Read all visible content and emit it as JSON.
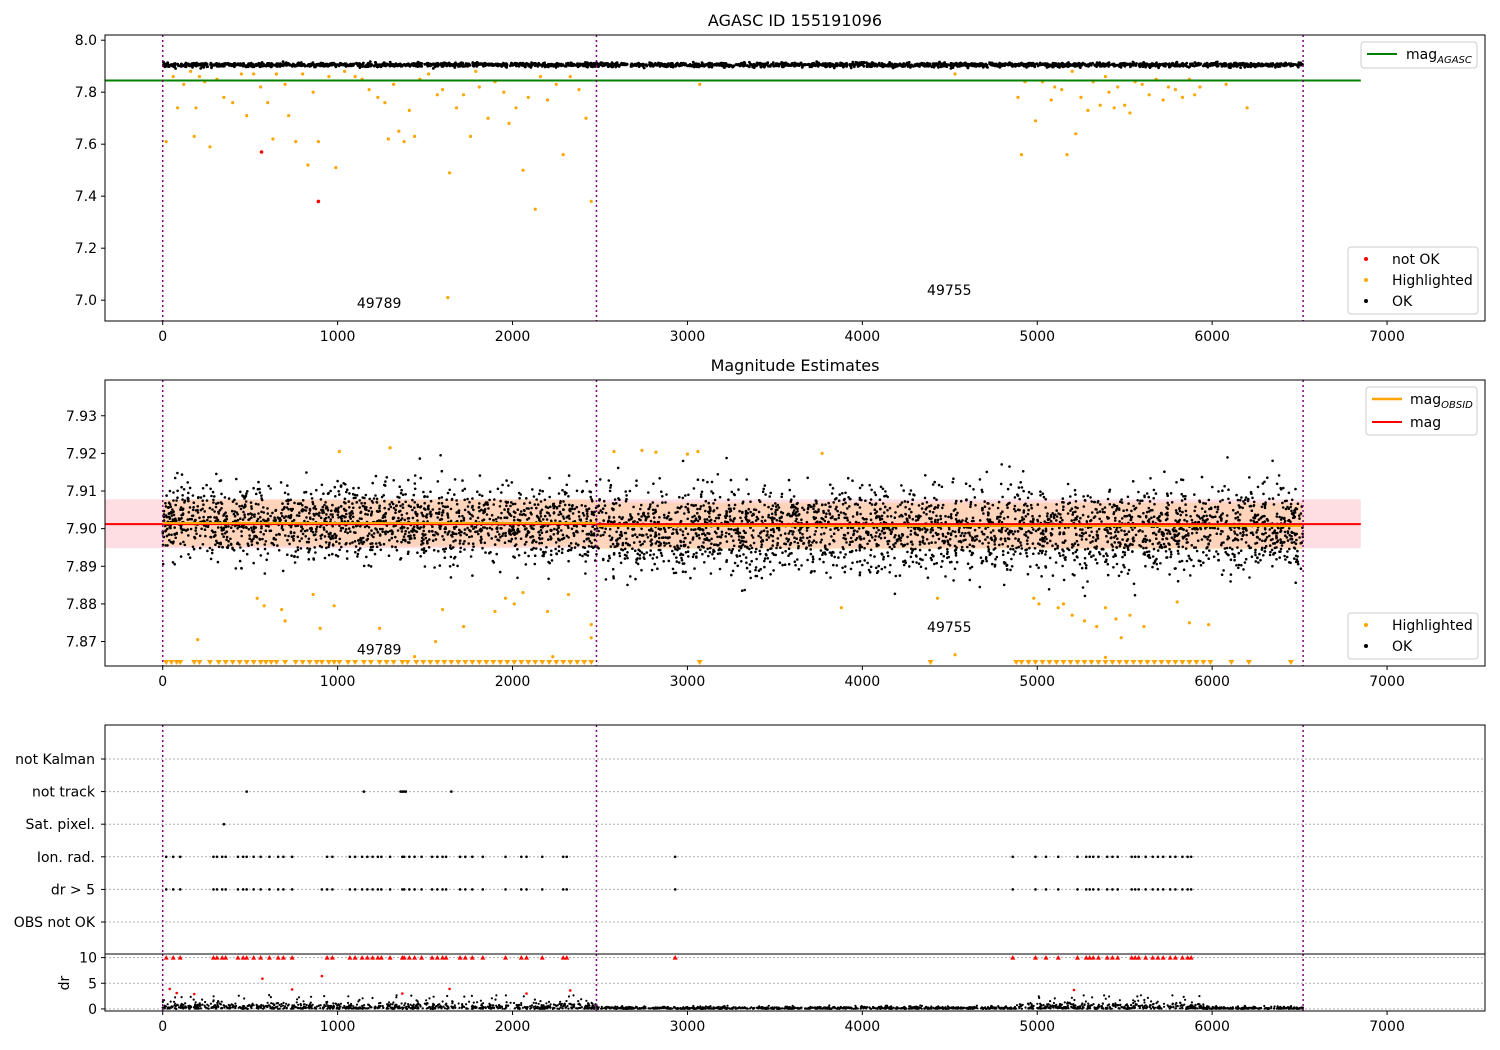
{
  "figure_title": "AGASC ID 155191096",
  "colors": {
    "ok": "#000000",
    "highlighted": "#ffa500",
    "not_ok": "#ff0000",
    "mag_agasc": "#008000",
    "mag": "#ff0000",
    "mag_obsid": "#ffa500",
    "obsid_boundary": "#800080",
    "band": "#ffb6c1"
  },
  "obsid_boundaries": [
    0,
    2480,
    6520
  ],
  "chart_data": [
    {
      "type": "scatter",
      "panel": "top",
      "title": "AGASC ID 155191096",
      "xlim": [
        -330,
        7560
      ],
      "ylim": [
        6.92,
        8.02
      ],
      "xticks": [
        0,
        1000,
        2000,
        3000,
        4000,
        5000,
        6000,
        7000
      ],
      "yticks": [
        7.0,
        7.2,
        7.4,
        7.6,
        7.8,
        8.0
      ],
      "ytick_labels": [
        "7.0",
        "7.2",
        "7.4",
        "7.6",
        "7.8",
        "8.0"
      ],
      "grid": false,
      "legend_upper": {
        "position": "top-right",
        "entries": [
          {
            "label": "mag",
            "subscript": "AGASC"
          }
        ]
      },
      "legend_lower": {
        "position": "bottom-right",
        "entries": [
          "not OK",
          "Highlighted",
          "OK"
        ]
      },
      "mag_agasc": 7.845,
      "mag_agasc_x_range": [
        -330,
        6850
      ],
      "annotations": [
        {
          "text": "49789",
          "x": 1110,
          "y": 6.97
        },
        {
          "text": "49755",
          "x": 4370,
          "y": 7.02
        }
      ],
      "ok_series": {
        "level": 7.905,
        "spread": 0.008,
        "x_range": [
          0,
          6520
        ]
      },
      "highlighted_points": [
        [
          20,
          7.61
        ],
        [
          60,
          7.86
        ],
        [
          85,
          7.74
        ],
        [
          120,
          7.83
        ],
        [
          160,
          7.88
        ],
        [
          180,
          7.63
        ],
        [
          190,
          7.74
        ],
        [
          210,
          7.86
        ],
        [
          240,
          7.84
        ],
        [
          270,
          7.59
        ],
        [
          310,
          7.85
        ],
        [
          350,
          7.78
        ],
        [
          400,
          7.76
        ],
        [
          450,
          7.87
        ],
        [
          480,
          7.71
        ],
        [
          520,
          7.87
        ],
        [
          560,
          7.82
        ],
        [
          600,
          7.76
        ],
        [
          630,
          7.62
        ],
        [
          650,
          7.87
        ],
        [
          700,
          7.83
        ],
        [
          720,
          7.71
        ],
        [
          760,
          7.61
        ],
        [
          800,
          7.87
        ],
        [
          830,
          7.52
        ],
        [
          860,
          7.8
        ],
        [
          890,
          7.61
        ],
        [
          950,
          7.86
        ],
        [
          990,
          7.51
        ],
        [
          1040,
          7.88
        ],
        [
          1100,
          7.86
        ],
        [
          1140,
          7.85
        ],
        [
          1180,
          7.81
        ],
        [
          1230,
          7.78
        ],
        [
          1270,
          7.76
        ],
        [
          1290,
          7.62
        ],
        [
          1320,
          7.83
        ],
        [
          1350,
          7.65
        ],
        [
          1380,
          7.61
        ],
        [
          1410,
          7.73
        ],
        [
          1440,
          7.63
        ],
        [
          1470,
          7.85
        ],
        [
          1520,
          7.87
        ],
        [
          1570,
          7.79
        ],
        [
          1600,
          7.81
        ],
        [
          1640,
          7.49
        ],
        [
          1680,
          7.74
        ],
        [
          1720,
          7.79
        ],
        [
          1760,
          7.63
        ],
        [
          1790,
          7.88
        ],
        [
          1810,
          7.82
        ],
        [
          1860,
          7.7
        ],
        [
          1900,
          7.84
        ],
        [
          1950,
          7.8
        ],
        [
          1980,
          7.68
        ],
        [
          2020,
          7.74
        ],
        [
          2060,
          7.5
        ],
        [
          2090,
          7.78
        ],
        [
          2130,
          7.35
        ],
        [
          2160,
          7.86
        ],
        [
          2200,
          7.77
        ],
        [
          2250,
          7.83
        ],
        [
          2290,
          7.56
        ],
        [
          2330,
          7.86
        ],
        [
          2380,
          7.81
        ],
        [
          2420,
          7.7
        ],
        [
          2450,
          7.38
        ],
        [
          3070,
          7.83
        ],
        [
          4530,
          7.87
        ],
        [
          4890,
          7.78
        ],
        [
          4910,
          7.56
        ],
        [
          4930,
          7.84
        ],
        [
          4990,
          7.69
        ],
        [
          5030,
          7.84
        ],
        [
          5080,
          7.77
        ],
        [
          5100,
          7.82
        ],
        [
          5140,
          7.81
        ],
        [
          5170,
          7.56
        ],
        [
          5200,
          7.88
        ],
        [
          5220,
          7.64
        ],
        [
          5250,
          7.78
        ],
        [
          5290,
          7.73
        ],
        [
          5320,
          7.84
        ],
        [
          5360,
          7.75
        ],
        [
          5390,
          7.86
        ],
        [
          5410,
          7.8
        ],
        [
          5440,
          7.74
        ],
        [
          5460,
          7.82
        ],
        [
          5500,
          7.75
        ],
        [
          5530,
          7.72
        ],
        [
          5560,
          7.84
        ],
        [
          5600,
          7.83
        ],
        [
          5640,
          7.79
        ],
        [
          5680,
          7.85
        ],
        [
          5720,
          7.77
        ],
        [
          5750,
          7.82
        ],
        [
          5790,
          7.81
        ],
        [
          5830,
          7.78
        ],
        [
          5870,
          7.85
        ],
        [
          5900,
          7.79
        ],
        [
          5930,
          7.82
        ],
        [
          6080,
          7.83
        ],
        [
          6200,
          7.74
        ],
        [
          1630,
          7.01
        ]
      ],
      "not_ok_points": [
        [
          565,
          7.57
        ],
        [
          890,
          7.38
        ]
      ]
    },
    {
      "type": "scatter",
      "panel": "middle",
      "title": "Magnitude Estimates",
      "xlim": [
        -330,
        7560
      ],
      "ylim": [
        7.8635,
        7.9395
      ],
      "xticks": [
        0,
        1000,
        2000,
        3000,
        4000,
        5000,
        6000,
        7000
      ],
      "yticks": [
        7.87,
        7.88,
        7.89,
        7.9,
        7.91,
        7.92,
        7.93
      ],
      "ytick_labels": [
        "7.87",
        "7.88",
        "7.89",
        "7.90",
        "7.91",
        "7.92",
        "7.93"
      ],
      "grid": false,
      "legend_upper": {
        "position": "top-right",
        "entries": [
          {
            "label": "mag",
            "subscript": "OBSID"
          },
          {
            "label": "mag",
            "subscript": ""
          }
        ]
      },
      "legend_lower": {
        "position": "bottom-right",
        "entries": [
          "Highlighted",
          "OK"
        ]
      },
      "mag": 7.9012,
      "mag_band": [
        7.8948,
        7.9078
      ],
      "mag_x_range": [
        -330,
        6850
      ],
      "mag_obsid": [
        {
          "x_range": [
            0,
            2480
          ],
          "value": 7.9015
        },
        {
          "x_range": [
            2480,
            6520
          ],
          "value": 7.9007
        }
      ],
      "annotations": [
        {
          "text": "49789",
          "x": 1110,
          "y": 7.8665
        },
        {
          "text": "49755",
          "x": 4370,
          "y": 7.8725
        }
      ],
      "ok_series": [
        {
          "x_range": [
            0,
            2480
          ],
          "level": 7.9015,
          "spread": 0.0048
        },
        {
          "x_range": [
            2480,
            6520
          ],
          "level": 7.8995,
          "spread": 0.0056
        }
      ],
      "highlighted_points": [
        [
          540,
          7.8815
        ],
        [
          580,
          7.8795
        ],
        [
          680,
          7.8785
        ],
        [
          700,
          7.8755
        ],
        [
          860,
          7.8825
        ],
        [
          900,
          7.8735
        ],
        [
          980,
          7.8795
        ],
        [
          1010,
          7.9205
        ],
        [
          1240,
          7.8735
        ],
        [
          1300,
          7.9215
        ],
        [
          1560,
          7.87
        ],
        [
          1600,
          7.8785
        ],
        [
          1720,
          7.874
        ],
        [
          1900,
          7.878
        ],
        [
          1960,
          7.8815
        ],
        [
          2010,
          7.88
        ],
        [
          2060,
          7.883
        ],
        [
          2200,
          7.878
        ],
        [
          2320,
          7.8825
        ],
        [
          2450,
          7.8745
        ],
        [
          2450,
          7.871
        ],
        [
          2580,
          7.9205
        ],
        [
          2740,
          7.9208
        ],
        [
          2820,
          7.9203
        ],
        [
          3000,
          7.9198
        ],
        [
          3060,
          7.9205
        ],
        [
          3770,
          7.92
        ],
        [
          3880,
          7.879
        ],
        [
          4430,
          7.8815
        ],
        [
          4530,
          7.8665
        ],
        [
          4980,
          7.8815
        ],
        [
          5010,
          7.88
        ],
        [
          5120,
          7.879
        ],
        [
          5150,
          7.88
        ],
        [
          5200,
          7.877
        ],
        [
          5270,
          7.8755
        ],
        [
          5340,
          7.874
        ],
        [
          5390,
          7.879
        ],
        [
          5450,
          7.876
        ],
        [
          5480,
          7.871
        ],
        [
          5530,
          7.877
        ],
        [
          5610,
          7.874
        ],
        [
          5800,
          7.8805
        ],
        [
          5870,
          7.875
        ],
        [
          5980,
          7.8745
        ],
        [
          200,
          7.8705
        ],
        [
          1440,
          7.866
        ],
        [
          2230,
          7.866
        ],
        [
          5390,
          7.8658
        ]
      ],
      "clipped_x": [
        20,
        50,
        80,
        100,
        180,
        210,
        270,
        320,
        360,
        400,
        440,
        480,
        520,
        560,
        590,
        620,
        650,
        700,
        760,
        800,
        840,
        880,
        910,
        950,
        980,
        1010,
        1060,
        1100,
        1150,
        1190,
        1240,
        1280,
        1320,
        1370,
        1400,
        1450,
        1490,
        1530,
        1570,
        1610,
        1650,
        1690,
        1730,
        1770,
        1810,
        1850,
        1890,
        1930,
        1970,
        2010,
        2050,
        2090,
        2130,
        2170,
        2210,
        2250,
        2290,
        2330,
        2370,
        2410,
        2450,
        3070,
        4390,
        4880,
        4910,
        4950,
        4990,
        5030,
        5070,
        5110,
        5150,
        5190,
        5230,
        5270,
        5310,
        5350,
        5390,
        5430,
        5470,
        5510,
        5550,
        5590,
        5630,
        5670,
        5710,
        5750,
        5790,
        5830,
        5870,
        5910,
        5950,
        5990,
        6110,
        6210,
        6450
      ]
    },
    {
      "type": "scatter",
      "panel": "flags",
      "xlim": [
        -330,
        7560
      ],
      "categories": [
        "not Kalman",
        "not track",
        "Sat. pixel.",
        "Ion. rad.",
        "dr > 5",
        "OBS not OK"
      ],
      "grid": true,
      "points": {
        "not track": [
          480,
          1150,
          1360,
          1370,
          1380,
          1390,
          1650
        ],
        "Sat. pixel.": [
          350
        ],
        "Ion. rad.": [
          20,
          60,
          100,
          290,
          310,
          340,
          360,
          430,
          460,
          480,
          520,
          560,
          610,
          660,
          690,
          740,
          940,
          970,
          1070,
          1100,
          1140,
          1170,
          1200,
          1230,
          1250,
          1300,
          1370,
          1380,
          1410,
          1440,
          1480,
          1540,
          1570,
          1600,
          1620,
          1700,
          1730,
          1770,
          1830,
          1960,
          2050,
          2080,
          2170,
          2290,
          2310,
          2930,
          4860,
          4990,
          5050,
          5120,
          5230,
          5280,
          5300,
          5320,
          5350,
          5400,
          5430,
          5460,
          5540,
          5560,
          5580,
          5620,
          5660,
          5690,
          5720,
          5760,
          5790,
          5830,
          5860,
          5880
        ],
        "dr > 5": [
          20,
          60,
          100,
          290,
          310,
          340,
          360,
          430,
          460,
          480,
          520,
          560,
          610,
          660,
          690,
          740,
          910,
          940,
          970,
          1070,
          1100,
          1140,
          1170,
          1200,
          1230,
          1250,
          1300,
          1370,
          1380,
          1410,
          1440,
          1480,
          1540,
          1570,
          1600,
          1620,
          1700,
          1730,
          1770,
          1830,
          1960,
          2050,
          2080,
          2170,
          2290,
          2310,
          2930,
          4860,
          4990,
          5050,
          5120,
          5230,
          5280,
          5300,
          5320,
          5350,
          5400,
          5430,
          5460,
          5540,
          5560,
          5580,
          5620,
          5660,
          5690,
          5720,
          5760,
          5790,
          5830,
          5860,
          5880
        ]
      }
    },
    {
      "type": "scatter",
      "panel": "dr",
      "ylabel": "dr",
      "xlim": [
        -330,
        7560
      ],
      "ylim": [
        -0.4,
        10.7
      ],
      "xticks": [
        0,
        1000,
        2000,
        3000,
        4000,
        5000,
        6000,
        7000
      ],
      "yticks": [
        0,
        5,
        10
      ],
      "ytick_labels": [
        "0",
        "5",
        "10"
      ],
      "grid": true,
      "clip_value": 10,
      "high_points": [
        [
          40,
          3.9
        ],
        [
          80,
          3.1
        ],
        [
          180,
          2.9
        ],
        [
          570,
          5.9
        ],
        [
          740,
          3.8
        ],
        [
          910,
          6.4
        ],
        [
          1370,
          3.0
        ],
        [
          1640,
          3.9
        ],
        [
          2080,
          3.0
        ],
        [
          2330,
          3.6
        ],
        [
          5210,
          3.7
        ]
      ],
      "clipped_x": [
        20,
        60,
        100,
        290,
        310,
        340,
        360,
        430,
        460,
        480,
        520,
        560,
        610,
        660,
        690,
        740,
        940,
        970,
        1070,
        1100,
        1140,
        1170,
        1200,
        1230,
        1250,
        1300,
        1370,
        1380,
        1410,
        1440,
        1480,
        1540,
        1570,
        1600,
        1620,
        1700,
        1730,
        1770,
        1830,
        1960,
        2050,
        2080,
        2170,
        2290,
        2310,
        2930,
        4860,
        4990,
        5050,
        5120,
        5230,
        5280,
        5300,
        5320,
        5350,
        5400,
        5430,
        5460,
        5540,
        5560,
        5580,
        5620,
        5660,
        5690,
        5720,
        5760,
        5790,
        5830,
        5860,
        5880
      ],
      "dense_regions": [
        [
          0,
          2480
        ],
        [
          4880,
          5950
        ]
      ]
    }
  ]
}
